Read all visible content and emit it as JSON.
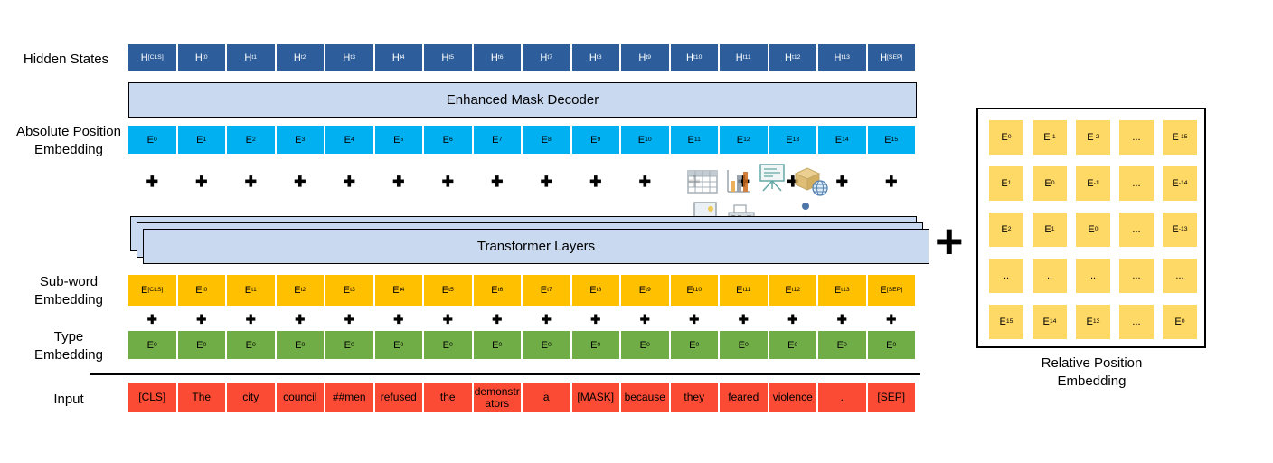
{
  "diagram": {
    "left_labels": {
      "hidden_states": "Hidden States",
      "absolute_position_1": "Absolute Position",
      "absolute_position_2": "Embedding",
      "subword_1": "Sub-word",
      "subword_2": "Embedding",
      "type_1": "Type",
      "type_2": "Embedding",
      "input": "Input"
    },
    "bars": {
      "enhanced_mask_decoder": "Enhanced Mask Decoder",
      "transformer_layers": "Transformer Layers"
    },
    "plus_symbol": "+",
    "plus_count_per_row": 16,
    "big_plus": "+",
    "rows": {
      "hidden_states": [
        {
          "b": "H",
          "s": "[CLS]"
        },
        {
          "b": "H",
          "s": "t0"
        },
        {
          "b": "H",
          "s": "t1"
        },
        {
          "b": "H",
          "s": "t2"
        },
        {
          "b": "H",
          "s": "t3"
        },
        {
          "b": "H",
          "s": "t4"
        },
        {
          "b": "H",
          "s": "t5"
        },
        {
          "b": "H",
          "s": "t6"
        },
        {
          "b": "H",
          "s": "t7"
        },
        {
          "b": "H",
          "s": "t8"
        },
        {
          "b": "H",
          "s": "t9"
        },
        {
          "b": "H",
          "s": "t10"
        },
        {
          "b": "H",
          "s": "t11"
        },
        {
          "b": "H",
          "s": "t12"
        },
        {
          "b": "H",
          "s": "t13"
        },
        {
          "b": "H",
          "s": "[SEP]"
        }
      ],
      "absolute_position": [
        {
          "b": "E",
          "s": "0"
        },
        {
          "b": "E",
          "s": "1"
        },
        {
          "b": "E",
          "s": "2"
        },
        {
          "b": "E",
          "s": "3"
        },
        {
          "b": "E",
          "s": "4"
        },
        {
          "b": "E",
          "s": "5"
        },
        {
          "b": "E",
          "s": "6"
        },
        {
          "b": "E",
          "s": "7"
        },
        {
          "b": "E",
          "s": "8"
        },
        {
          "b": "E",
          "s": "9"
        },
        {
          "b": "E",
          "s": "10"
        },
        {
          "b": "E",
          "s": "11"
        },
        {
          "b": "E",
          "s": "12"
        },
        {
          "b": "E",
          "s": "13"
        },
        {
          "b": "E",
          "s": "14"
        },
        {
          "b": "E",
          "s": "15"
        }
      ],
      "subword": [
        {
          "b": "E",
          "s": "[CLS]"
        },
        {
          "b": "E",
          "s": "t0"
        },
        {
          "b": "E",
          "s": "t1"
        },
        {
          "b": "E",
          "s": "t2"
        },
        {
          "b": "E",
          "s": "t3"
        },
        {
          "b": "E",
          "s": "t4"
        },
        {
          "b": "E",
          "s": "t5"
        },
        {
          "b": "E",
          "s": "t6"
        },
        {
          "b": "E",
          "s": "t7"
        },
        {
          "b": "E",
          "s": "t8"
        },
        {
          "b": "E",
          "s": "t9"
        },
        {
          "b": "E",
          "s": "t10"
        },
        {
          "b": "E",
          "s": "t11"
        },
        {
          "b": "E",
          "s": "t12"
        },
        {
          "b": "E",
          "s": "t13"
        },
        {
          "b": "E",
          "s": "[SEP]"
        }
      ],
      "type": [
        {
          "b": "E",
          "s": "0"
        },
        {
          "b": "E",
          "s": "0"
        },
        {
          "b": "E",
          "s": "0"
        },
        {
          "b": "E",
          "s": "0"
        },
        {
          "b": "E",
          "s": "0"
        },
        {
          "b": "E",
          "s": "0"
        },
        {
          "b": "E",
          "s": "0"
        },
        {
          "b": "E",
          "s": "0"
        },
        {
          "b": "E",
          "s": "0"
        },
        {
          "b": "E",
          "s": "0"
        },
        {
          "b": "E",
          "s": "0"
        },
        {
          "b": "E",
          "s": "0"
        },
        {
          "b": "E",
          "s": "0"
        },
        {
          "b": "E",
          "s": "0"
        },
        {
          "b": "E",
          "s": "0"
        },
        {
          "b": "E",
          "s": "0"
        }
      ],
      "input": [
        "[CLS]",
        "The",
        "city",
        "council",
        "##men",
        "refused",
        "the",
        "demonstrators",
        "a",
        "[MASK]",
        "because",
        "they",
        "feared",
        "violence",
        ".",
        "[SEP]"
      ]
    },
    "relative_position": {
      "cells": [
        [
          {
            "b": "E",
            "s": "0"
          },
          {
            "b": "E",
            "s": "-1"
          },
          {
            "b": "E",
            "s": "-2"
          },
          {
            "b": "...",
            "s": ""
          },
          {
            "b": "E",
            "s": "-15"
          }
        ],
        [
          {
            "b": "E",
            "s": "1"
          },
          {
            "b": "E",
            "s": "0"
          },
          {
            "b": "E",
            "s": "-1"
          },
          {
            "b": "...",
            "s": ""
          },
          {
            "b": "E",
            "s": "-14"
          }
        ],
        [
          {
            "b": "E",
            "s": "2"
          },
          {
            "b": "E",
            "s": "1"
          },
          {
            "b": "E",
            "s": "0"
          },
          {
            "b": "...",
            "s": ""
          },
          {
            "b": "E",
            "s": "-13"
          }
        ],
        [
          {
            "b": "..",
            "s": ""
          },
          {
            "b": "..",
            "s": ""
          },
          {
            "b": "..",
            "s": ""
          },
          {
            "b": "...",
            "s": ""
          },
          {
            "b": "...",
            "s": ""
          }
        ],
        [
          {
            "b": "E",
            "s": "15"
          },
          {
            "b": "E",
            "s": "14"
          },
          {
            "b": "E",
            "s": "13"
          },
          {
            "b": "...",
            "s": ""
          },
          {
            "b": "E",
            "s": "0"
          }
        ]
      ],
      "label_1": "Relative Position",
      "label_2": "Embedding"
    },
    "colors": {
      "hidden": "#2d5e9b",
      "bar": "#c9d9f0",
      "absolute": "#00b0f0",
      "subword": "#ffc000",
      "type": "#70ad47",
      "input": "#fb4b34",
      "relative": "#ffd966"
    },
    "decorative_icons": [
      "table-icon",
      "bar-chart-icon",
      "flipchart-icon",
      "package-globe-icon",
      "monitor-icon",
      "printer-icon",
      "person-icon"
    ]
  }
}
